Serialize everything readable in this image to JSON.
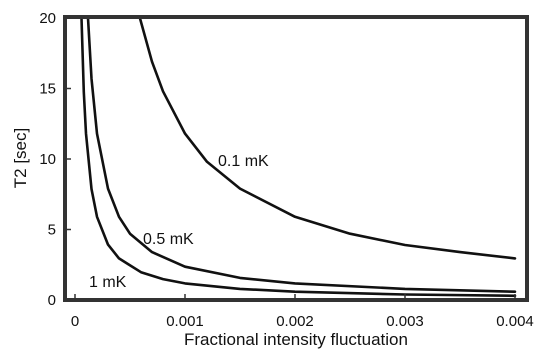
{
  "chart_data": {
    "type": "line",
    "xlabel": "Fractional intensity fluctuation",
    "ylabel": "T2 [sec]",
    "xlim": [
      0,
      0.004
    ],
    "ylim": [
      0,
      20
    ],
    "x_ticks": [
      "0",
      "0.001",
      "0.002",
      "0.003",
      "0.004"
    ],
    "y_ticks": [
      "0",
      "5",
      "10",
      "15",
      "20"
    ],
    "grid": false,
    "series": [
      {
        "name": "0.1 mK",
        "x": [
          0.00059,
          0.0007,
          0.0008,
          0.001,
          0.0012,
          0.0015,
          0.002,
          0.0025,
          0.003,
          0.0035,
          0.004
        ],
        "y": [
          20,
          16.9,
          14.8,
          11.8,
          9.8,
          7.9,
          5.9,
          4.7,
          3.9,
          3.4,
          2.95
        ]
      },
      {
        "name": "0.5 mK",
        "x": [
          0.000118,
          0.00015,
          0.0002,
          0.0003,
          0.0004,
          0.0005,
          0.0007,
          0.001,
          0.0015,
          0.002,
          0.003,
          0.004
        ],
        "y": [
          20,
          15.7,
          11.8,
          7.9,
          5.9,
          4.7,
          3.4,
          2.36,
          1.57,
          1.18,
          0.79,
          0.59
        ]
      },
      {
        "name": "1 mK",
        "x": [
          5.9e-05,
          8e-05,
          0.0001,
          0.00015,
          0.0002,
          0.0003,
          0.0004,
          0.0006,
          0.0008,
          0.001,
          0.0015,
          0.002,
          0.003,
          0.004
        ],
        "y": [
          20,
          14.75,
          11.8,
          7.87,
          5.9,
          3.93,
          2.95,
          1.97,
          1.48,
          1.18,
          0.79,
          0.59,
          0.39,
          0.3
        ]
      }
    ]
  }
}
